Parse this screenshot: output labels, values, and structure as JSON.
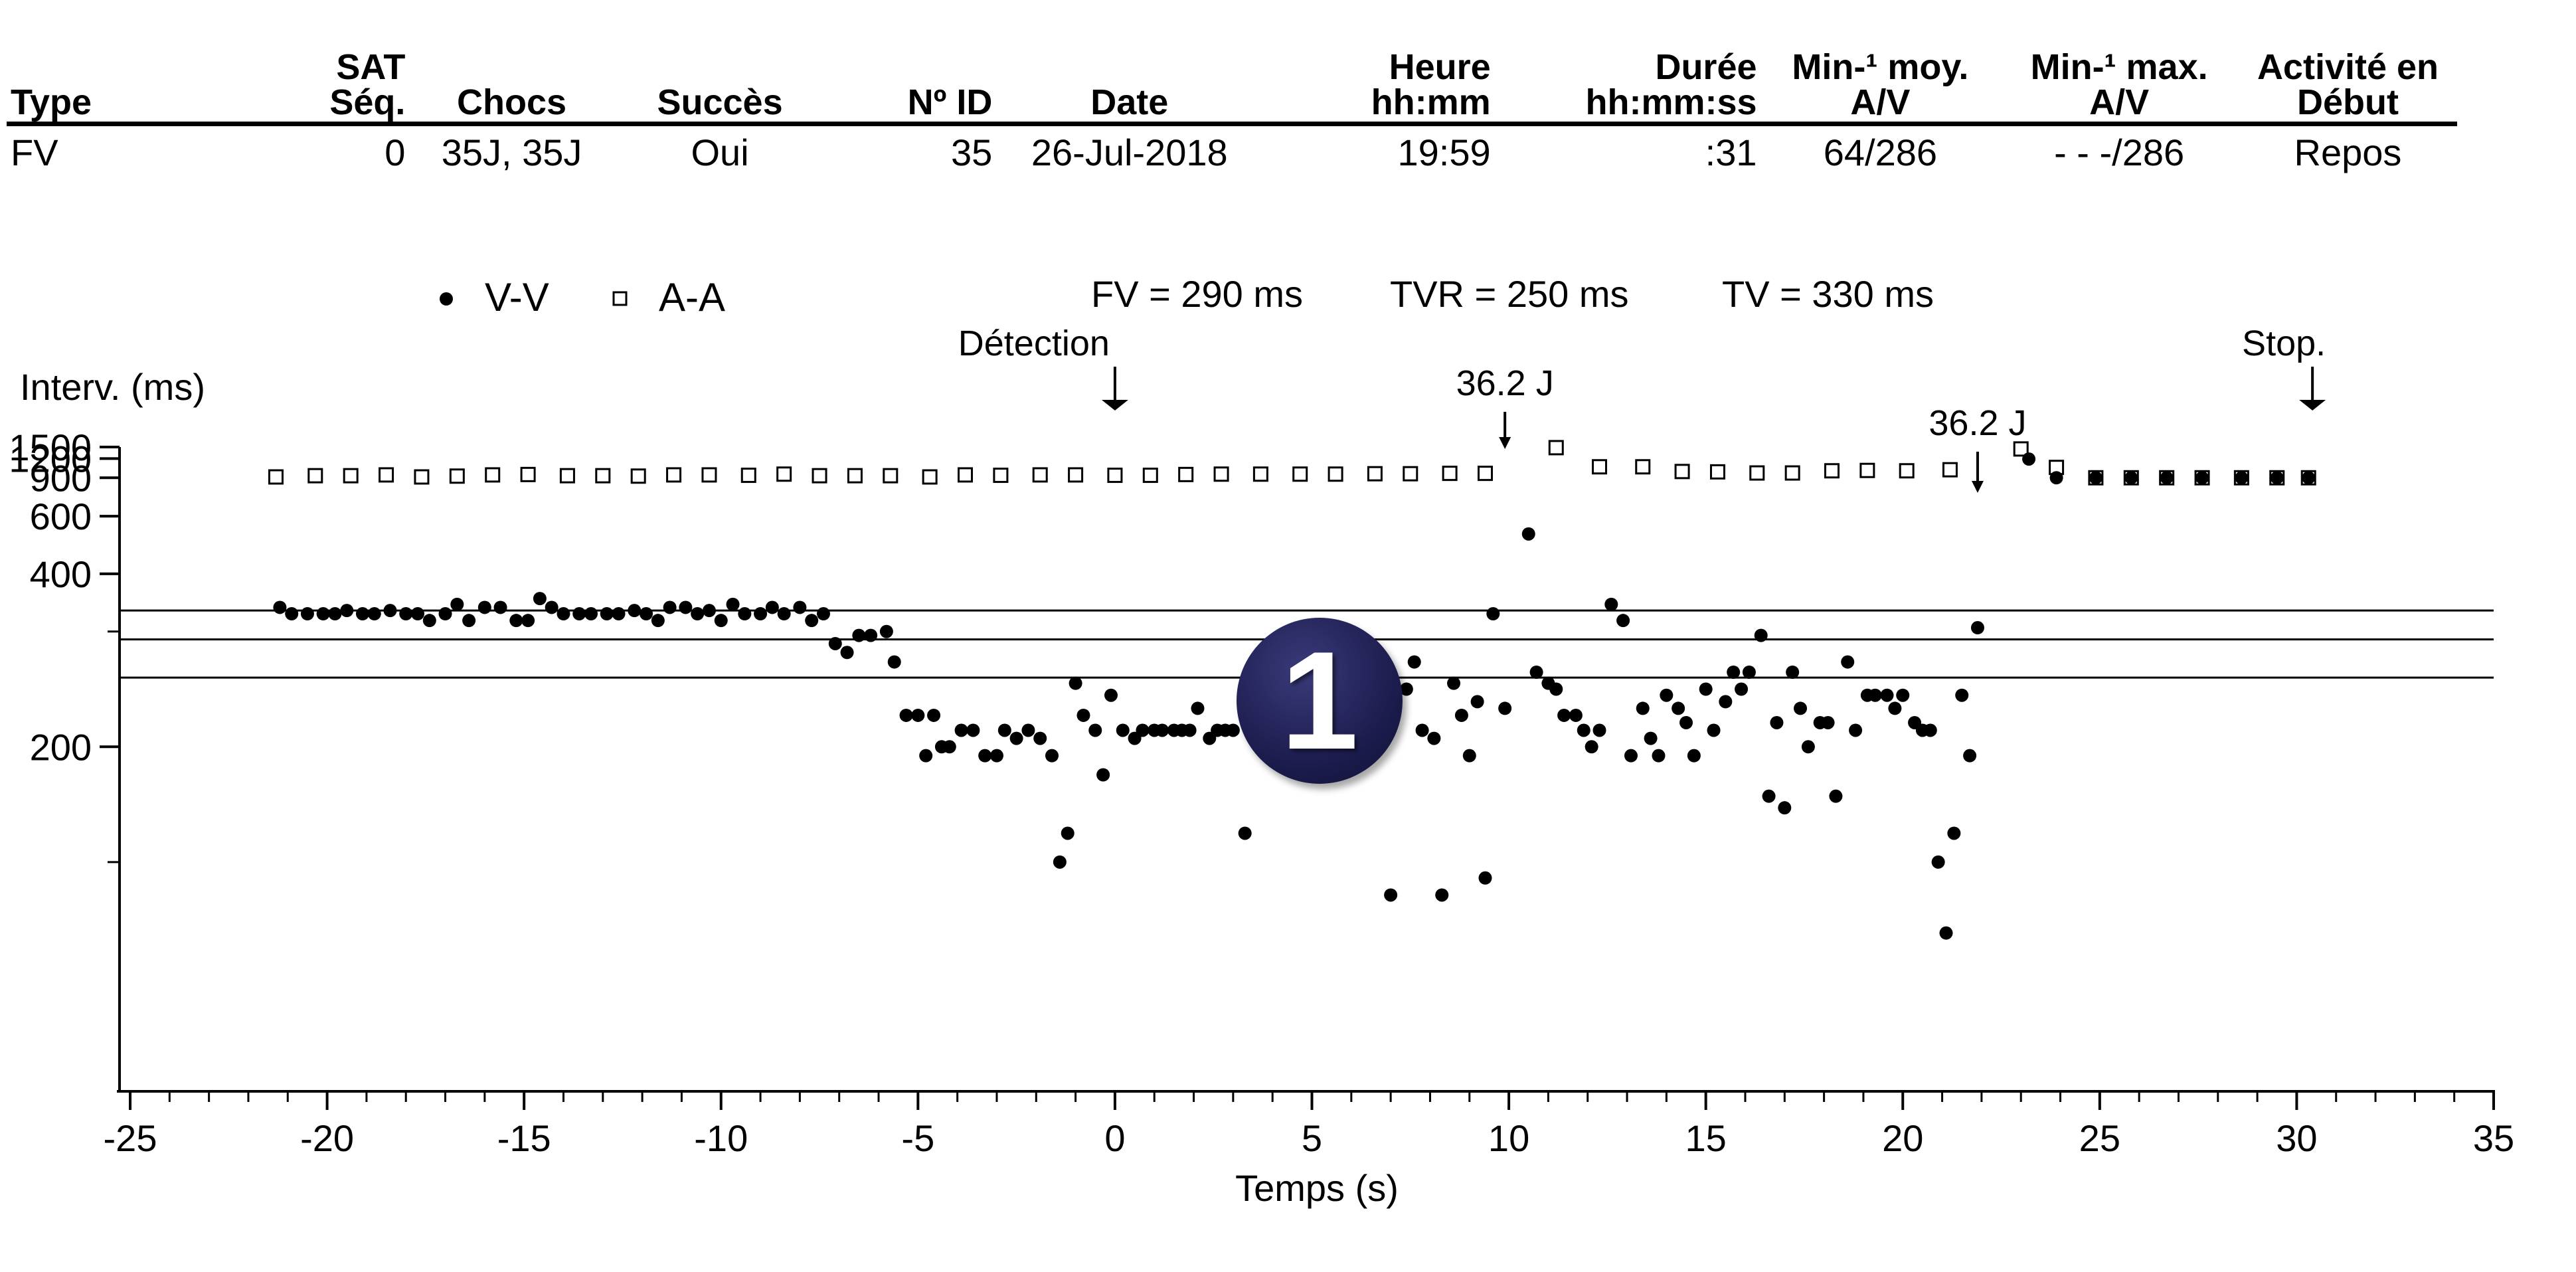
{
  "episode_table": {
    "header_line1": [
      "",
      "SAT",
      "",
      "",
      "",
      "",
      "Heure",
      "Durée",
      "Min-¹ moy.",
      "Min-¹ max.",
      "Activité en"
    ],
    "header_line2": [
      "Type",
      "Séq.",
      "Chocs",
      "Succès",
      "Nº ID",
      "Date",
      "hh:mm",
      "hh:mm:ss",
      "A/V",
      "A/V",
      "Début"
    ],
    "row": [
      "FV",
      "0",
      "35J, 35J",
      "Oui",
      "35",
      "26-Jul-2018",
      "19:59",
      ":31",
      "64/286",
      "- - -/286",
      "Repos"
    ]
  },
  "legend": {
    "vv_label": "V-V",
    "aa_label": "A-A",
    "zones": [
      "FV = 290 ms",
      "TVR = 250 ms",
      "TV = 330 ms"
    ]
  },
  "badge": "1",
  "chart_data": {
    "type": "scatter",
    "title": "",
    "xlabel": "Temps (s)",
    "ylabel": "Interv. (ms)",
    "xlim": [
      -25,
      35
    ],
    "x_ticks": [
      -25,
      -20,
      -15,
      -10,
      -5,
      0,
      5,
      10,
      15,
      20,
      25,
      30,
      35
    ],
    "y_scale": "reciprocal",
    "y_ticks": [
      1500,
      1200,
      900,
      600,
      400,
      200
    ],
    "y_minor_ticks": [
      300,
      150
    ],
    "zone_lines": [
      {
        "label": "TV = 330 ms",
        "value": 330
      },
      {
        "label": "FV = 290 ms",
        "value": 290
      },
      {
        "label": "TVR = 250 ms",
        "value": 250
      }
    ],
    "annotations": [
      {
        "text": "Détection",
        "x": 0
      },
      {
        "text": "36.2 J",
        "x": 9.9
      },
      {
        "text": "36.2 J",
        "x": 21.9
      },
      {
        "text": "Stop.",
        "x": 30.4
      }
    ],
    "series": [
      {
        "name": "V-V",
        "marker": "filled-circle",
        "points": [
          [
            -21.2,
            335
          ],
          [
            -20.9,
            325
          ],
          [
            -20.5,
            325
          ],
          [
            -20.1,
            325
          ],
          [
            -19.8,
            325
          ],
          [
            -19.5,
            330
          ],
          [
            -19.1,
            325
          ],
          [
            -18.8,
            325
          ],
          [
            -18.4,
            330
          ],
          [
            -18.0,
            325
          ],
          [
            -17.7,
            325
          ],
          [
            -17.4,
            315
          ],
          [
            -17.0,
            325
          ],
          [
            -16.7,
            340
          ],
          [
            -16.4,
            315
          ],
          [
            -16.0,
            335
          ],
          [
            -15.6,
            335
          ],
          [
            -15.2,
            315
          ],
          [
            -14.9,
            315
          ],
          [
            -14.6,
            350
          ],
          [
            -14.3,
            335
          ],
          [
            -14.0,
            325
          ],
          [
            -13.6,
            325
          ],
          [
            -13.3,
            325
          ],
          [
            -12.9,
            325
          ],
          [
            -12.6,
            325
          ],
          [
            -12.2,
            330
          ],
          [
            -11.9,
            325
          ],
          [
            -11.6,
            315
          ],
          [
            -11.3,
            335
          ],
          [
            -10.9,
            335
          ],
          [
            -10.6,
            325
          ],
          [
            -10.3,
            330
          ],
          [
            -10.0,
            315
          ],
          [
            -9.7,
            340
          ],
          [
            -9.4,
            325
          ],
          [
            -9.0,
            325
          ],
          [
            -8.7,
            335
          ],
          [
            -8.4,
            325
          ],
          [
            -8.0,
            335
          ],
          [
            -7.7,
            315
          ],
          [
            -7.4,
            325
          ],
          [
            -7.1,
            285
          ],
          [
            -6.8,
            275
          ],
          [
            -6.5,
            295
          ],
          [
            -6.2,
            295
          ],
          [
            -5.8,
            300
          ],
          [
            -5.6,
            265
          ],
          [
            -5.3,
            220
          ],
          [
            -5.0,
            220
          ],
          [
            -4.8,
            195
          ],
          [
            -4.6,
            220
          ],
          [
            -4.4,
            200
          ],
          [
            -4.2,
            200
          ],
          [
            -3.9,
            210
          ],
          [
            -3.6,
            210
          ],
          [
            -3.3,
            195
          ],
          [
            -3.0,
            195
          ],
          [
            -2.8,
            210
          ],
          [
            -2.5,
            205
          ],
          [
            -2.2,
            210
          ],
          [
            -1.9,
            205
          ],
          [
            -1.6,
            195
          ],
          [
            -1.4,
            150
          ],
          [
            -1.2,
            160
          ],
          [
            -1.0,
            245
          ],
          [
            -0.8,
            220
          ],
          [
            -0.5,
            210
          ],
          [
            -0.3,
            185
          ],
          [
            -0.1,
            235
          ],
          [
            0.2,
            210
          ],
          [
            0.5,
            205
          ],
          [
            0.7,
            210
          ],
          [
            1.0,
            210
          ],
          [
            1.2,
            210
          ],
          [
            1.5,
            210
          ],
          [
            1.7,
            210
          ],
          [
            1.9,
            210
          ],
          [
            2.1,
            225
          ],
          [
            2.4,
            205
          ],
          [
            2.6,
            210
          ],
          [
            2.8,
            210
          ],
          [
            3.0,
            210
          ],
          [
            3.3,
            160
          ],
          [
            3.5,
            255
          ],
          [
            3.7,
            200
          ],
          [
            3.9,
            195
          ],
          [
            4.2,
            285
          ],
          [
            4.5,
            235
          ],
          [
            4.7,
            235
          ],
          [
            4.9,
            200
          ],
          [
            5.1,
            210
          ],
          [
            5.4,
            255
          ],
          [
            5.7,
            240
          ],
          [
            5.9,
            225
          ],
          [
            6.1,
            210
          ],
          [
            6.3,
            205
          ],
          [
            6.5,
            215
          ],
          [
            6.8,
            265
          ],
          [
            7.0,
            140
          ],
          [
            7.4,
            240
          ],
          [
            7.6,
            265
          ],
          [
            7.8,
            210
          ],
          [
            8.1,
            205
          ],
          [
            8.3,
            140
          ],
          [
            8.6,
            245
          ],
          [
            8.8,
            220
          ],
          [
            9.0,
            195
          ],
          [
            9.2,
            230
          ],
          [
            9.4,
            145
          ],
          [
            9.6,
            325
          ],
          [
            9.9,
            225
          ],
          [
            10.5,
            520
          ],
          [
            10.7,
            255
          ],
          [
            11.0,
            245
          ],
          [
            11.2,
            240
          ],
          [
            11.4,
            220
          ],
          [
            11.7,
            220
          ],
          [
            11.9,
            210
          ],
          [
            12.1,
            200
          ],
          [
            12.3,
            210
          ],
          [
            12.6,
            340
          ],
          [
            12.9,
            315
          ],
          [
            13.1,
            195
          ],
          [
            13.4,
            225
          ],
          [
            13.6,
            205
          ],
          [
            13.8,
            195
          ],
          [
            14.0,
            235
          ],
          [
            14.3,
            225
          ],
          [
            14.5,
            215
          ],
          [
            14.7,
            195
          ],
          [
            15.0,
            240
          ],
          [
            15.2,
            210
          ],
          [
            15.5,
            230
          ],
          [
            15.7,
            255
          ],
          [
            15.9,
            240
          ],
          [
            16.1,
            255
          ],
          [
            16.4,
            295
          ],
          [
            16.6,
            175
          ],
          [
            16.8,
            215
          ],
          [
            17.0,
            170
          ],
          [
            17.2,
            255
          ],
          [
            17.4,
            225
          ],
          [
            17.6,
            200
          ],
          [
            17.9,
            215
          ],
          [
            18.1,
            215
          ],
          [
            18.3,
            175
          ],
          [
            18.6,
            265
          ],
          [
            18.8,
            210
          ],
          [
            19.1,
            235
          ],
          [
            19.3,
            235
          ],
          [
            19.6,
            235
          ],
          [
            19.8,
            225
          ],
          [
            20.0,
            235
          ],
          [
            20.3,
            215
          ],
          [
            20.5,
            210
          ],
          [
            20.7,
            210
          ],
          [
            20.9,
            150
          ],
          [
            21.1,
            130
          ],
          [
            21.3,
            160
          ],
          [
            21.5,
            235
          ],
          [
            21.7,
            195
          ],
          [
            21.9,
            305
          ],
          [
            23.2,
            1190
          ],
          [
            23.9,
            900
          ],
          [
            24.9,
            900
          ],
          [
            25.8,
            900
          ],
          [
            26.7,
            900
          ],
          [
            27.6,
            900
          ],
          [
            28.6,
            900
          ],
          [
            29.5,
            900
          ],
          [
            30.3,
            900
          ]
        ]
      },
      {
        "name": "A-A",
        "marker": "open-square",
        "points": [
          [
            -21.3,
            910
          ],
          [
            -20.3,
            925
          ],
          [
            -19.4,
            925
          ],
          [
            -18.5,
            935
          ],
          [
            -17.6,
            910
          ],
          [
            -16.7,
            920
          ],
          [
            -15.8,
            935
          ],
          [
            -14.9,
            940
          ],
          [
            -13.9,
            925
          ],
          [
            -13.0,
            925
          ],
          [
            -12.1,
            920
          ],
          [
            -11.2,
            935
          ],
          [
            -10.3,
            935
          ],
          [
            -9.3,
            930
          ],
          [
            -8.4,
            945
          ],
          [
            -7.5,
            925
          ],
          [
            -6.6,
            925
          ],
          [
            -5.7,
            925
          ],
          [
            -4.7,
            910
          ],
          [
            -3.8,
            935
          ],
          [
            -2.9,
            930
          ],
          [
            -1.9,
            935
          ],
          [
            -1.0,
            935
          ],
          [
            0.0,
            930
          ],
          [
            0.9,
            930
          ],
          [
            1.8,
            940
          ],
          [
            2.7,
            945
          ],
          [
            3.7,
            945
          ],
          [
            4.7,
            945
          ],
          [
            5.6,
            945
          ],
          [
            6.6,
            950
          ],
          [
            7.5,
            950
          ],
          [
            8.5,
            955
          ],
          [
            9.4,
            955
          ],
          [
            11.2,
            1480
          ],
          [
            12.3,
            1050
          ],
          [
            13.4,
            1050
          ],
          [
            14.4,
            980
          ],
          [
            15.3,
            975
          ],
          [
            16.3,
            960
          ],
          [
            17.2,
            960
          ],
          [
            18.2,
            990
          ],
          [
            19.1,
            995
          ],
          [
            20.1,
            990
          ],
          [
            21.2,
            1005
          ],
          [
            23.0,
            1440
          ],
          [
            23.9,
            1040
          ],
          [
            24.9,
            900
          ],
          [
            25.8,
            900
          ],
          [
            26.7,
            900
          ],
          [
            27.6,
            900
          ],
          [
            28.6,
            900
          ],
          [
            29.5,
            900
          ],
          [
            30.3,
            900
          ]
        ]
      }
    ]
  }
}
